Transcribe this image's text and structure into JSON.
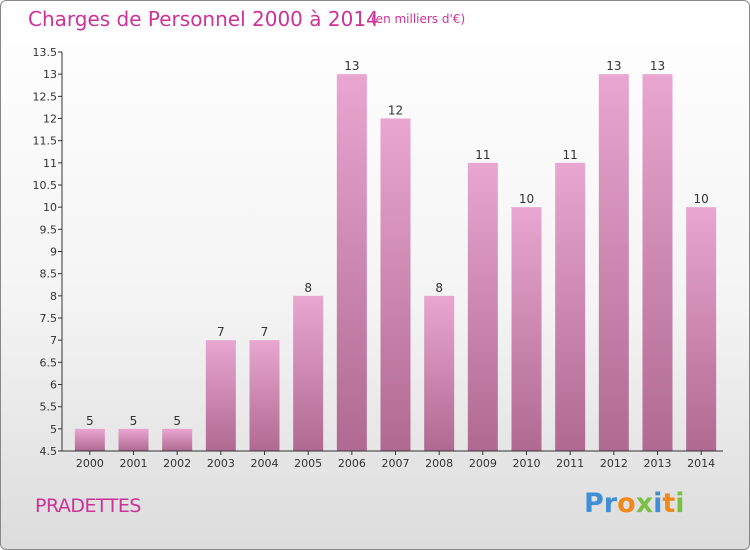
{
  "header": {
    "title": "Charges de Personnel 2000 à 2014",
    "subtitle": "(en milliers d'€)"
  },
  "footer": {
    "commune": "PRADETTES",
    "logo_letters": [
      {
        "ch": "P",
        "color": "#3f8fd6"
      },
      {
        "ch": "r",
        "color": "#3f8fd6"
      },
      {
        "ch": "o",
        "color": "#f08a1c"
      },
      {
        "ch": "x",
        "color": "#7ac143"
      },
      {
        "ch": "i",
        "color": "#3f8fd6"
      },
      {
        "ch": "t",
        "color": "#f08a1c"
      },
      {
        "ch": "i",
        "color": "#7ac143"
      }
    ]
  },
  "colors": {
    "title": "#cc3399",
    "bar_top": "#e8a6d0",
    "bar_bottom": "#b06a92",
    "axis": "#333333"
  },
  "chart_data": {
    "type": "bar",
    "categories": [
      "2000",
      "2001",
      "2002",
      "2003",
      "2004",
      "2005",
      "2006",
      "2007",
      "2008",
      "2009",
      "2010",
      "2011",
      "2012",
      "2013",
      "2014"
    ],
    "values": [
      5,
      5,
      5,
      7,
      7,
      8,
      13,
      12,
      8,
      11,
      10,
      11,
      13,
      13,
      10
    ],
    "value_labels": [
      "5",
      "5",
      "5",
      "7",
      "7",
      "8",
      "13",
      "12",
      "8",
      "11",
      "10",
      "11",
      "13",
      "13",
      "10"
    ],
    "ylim": [
      4.5,
      13.5
    ],
    "yticks": [
      4.5,
      5,
      5.5,
      6,
      6.5,
      7,
      7.5,
      8,
      8.5,
      9,
      9.5,
      10,
      10.5,
      11,
      11.5,
      12,
      12.5,
      13,
      13.5
    ],
    "ytick_labels": [
      "4.5",
      "5",
      "5.5",
      "6",
      "6.5",
      "7",
      "7.5",
      "8",
      "8.5",
      "9",
      "9.5",
      "10",
      "10.5",
      "11",
      "11.5",
      "12",
      "12.5",
      "13",
      "13.5"
    ],
    "grid": false
  }
}
